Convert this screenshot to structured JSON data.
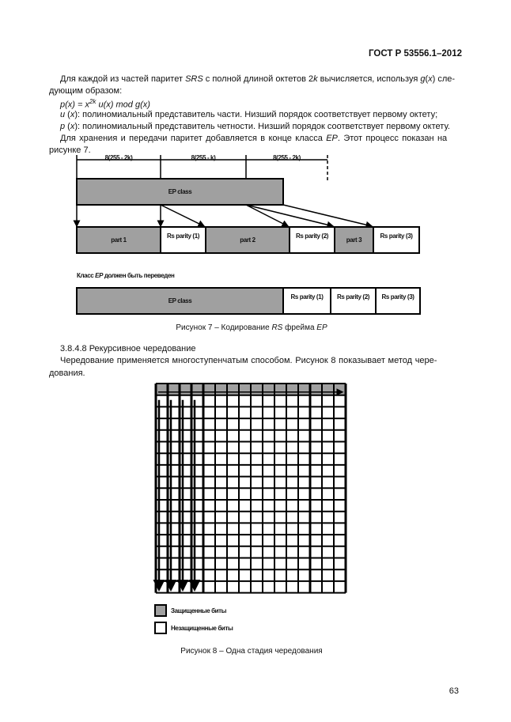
{
  "header": {
    "doc_code": "ГОСТ Р 53556.1–2012"
  },
  "text": {
    "p1a": "Для каждой из частей паритет ",
    "p1b": "SRS",
    "p1c": " с полной длиной октетов 2",
    "p1d": "k",
    "p1e": " вычисляется, используя ",
    "p1f": "g",
    "p1g": "(",
    "p1h": "x",
    "p1i": ") сле-",
    "p1j": "дующим образом:",
    "formula": "p(x) = x^2k u(x) mod g(x)",
    "u_def_a": "u",
    "u_def_b": " (",
    "u_def_c": "x",
    "u_def_d": "): полиномиальный представитель части. Низший порядок соответствует первому октету;",
    "p_def_a": "p",
    "p_def_b": " (",
    "p_def_c": "x",
    "p_def_d": "): полиномиальный представитель четности. Низший порядок соответствует первому октету.",
    "p2a": "Для хранения и передачи  паритет добавляется в конце класса ",
    "p2b": "EP",
    "p2c": ". Этот процесс показан на",
    "p2d": "рисунке 7.",
    "section": "3.8.4.8 Рекурсивное чередование",
    "p3a": "Чередование применяется многоступенчатым способом. Рисунок 8 показывает метод чере-",
    "p3b": "дования."
  },
  "figure7": {
    "dims": [
      "8(255 - 2k)",
      "8(255 - k)",
      "8(255 - 2k)"
    ],
    "ep_class": "EP class",
    "parts": [
      "part 1",
      "Rs parity (1)",
      "part 2",
      "Rs parity (2)",
      "part 3",
      "Rs parity (3)"
    ],
    "note_a": "Класс ",
    "note_b": "EP",
    "note_c": " должен быть переведен",
    "row2": [
      "EP class",
      "Rs parity (1)",
      "Rs parity (2)",
      "Rs parity (3)"
    ],
    "caption_a": "Рисунок 7 – Кодирование ",
    "caption_b": "RS",
    "caption_c": " фрейма ",
    "caption_d": "EP",
    "colors": {
      "protected": "#a0a0a0",
      "unprotected": "#ffffff"
    }
  },
  "figure8": {
    "legend": [
      "Защищенные биты",
      "Незащищенные биты"
    ],
    "caption": "Рисунок 8 – Одна стадия чередования"
  },
  "page_number": "63"
}
